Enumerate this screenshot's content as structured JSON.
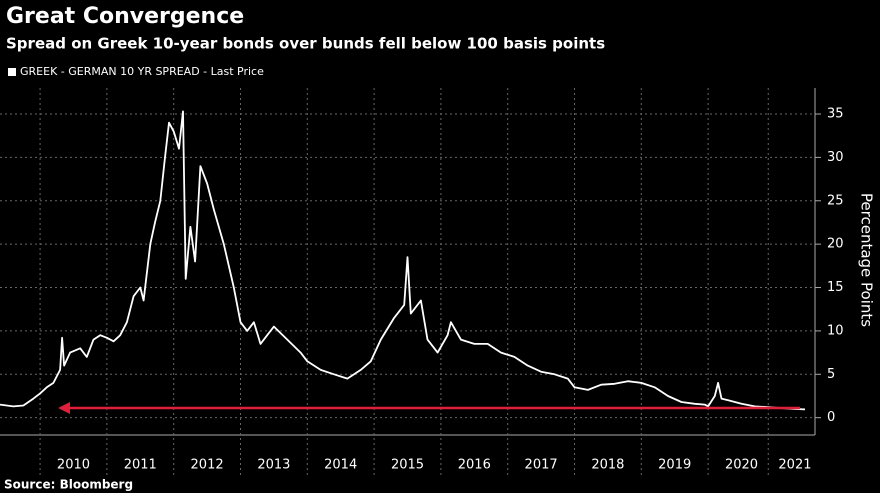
{
  "chart_data": {
    "type": "line",
    "title": "Great Convergence",
    "subtitle": "Spread on Greek 10-year bonds over bunds fell below 100 basis points",
    "source": "Source: Bloomberg",
    "y_label": "Percentage Points",
    "x": [
      2009.4,
      2009.6,
      2009.75,
      2009.9,
      2010.0,
      2010.1,
      2010.2,
      2010.3,
      2010.33,
      2010.36,
      2010.45,
      2010.6,
      2010.7,
      2010.8,
      2010.9,
      2011.0,
      2011.1,
      2011.2,
      2011.3,
      2011.4,
      2011.5,
      2011.55,
      2011.65,
      2011.72,
      2011.8,
      2011.87,
      2011.93,
      2012.0,
      2012.08,
      2012.14,
      2012.18,
      2012.25,
      2012.32,
      2012.4,
      2012.5,
      2012.6,
      2012.75,
      2012.9,
      2013.0,
      2013.1,
      2013.2,
      2013.3,
      2013.4,
      2013.5,
      2013.7,
      2013.9,
      2014.0,
      2014.2,
      2014.4,
      2014.6,
      2014.8,
      2014.95,
      2015.1,
      2015.3,
      2015.45,
      2015.5,
      2015.55,
      2015.7,
      2015.8,
      2015.95,
      2016.1,
      2016.15,
      2016.3,
      2016.5,
      2016.7,
      2016.9,
      2017.1,
      2017.3,
      2017.5,
      2017.7,
      2017.9,
      2018.0,
      2018.2,
      2018.4,
      2018.6,
      2018.8,
      2019.0,
      2019.2,
      2019.4,
      2019.6,
      2019.8,
      2019.95,
      2020.0,
      2020.1,
      2020.15,
      2020.2,
      2020.3,
      2020.5,
      2020.7,
      2020.9,
      2021.1,
      2021.3,
      2021.45
    ],
    "series": [
      {
        "name": "GREEK - GERMAN 10 YR SPREAD - Last Price",
        "color": "#ffffff",
        "values": [
          1.5,
          1.3,
          1.4,
          2.2,
          2.8,
          3.5,
          4.0,
          5.5,
          9.2,
          6.0,
          7.5,
          8.0,
          7.0,
          9.0,
          9.5,
          9.2,
          8.8,
          9.5,
          11.0,
          14.0,
          15.0,
          13.5,
          20.0,
          22.5,
          25.0,
          30.0,
          34.0,
          33.0,
          31.0,
          35.3,
          16.0,
          22.0,
          18.0,
          29.0,
          27.0,
          24.0,
          20.0,
          15.0,
          11.0,
          10.0,
          11.0,
          8.5,
          9.5,
          10.5,
          9.0,
          7.5,
          6.5,
          5.5,
          5.0,
          4.5,
          5.5,
          6.5,
          9.0,
          11.5,
          13.0,
          18.5,
          12.0,
          13.5,
          9.0,
          7.5,
          9.5,
          11.0,
          9.0,
          8.5,
          8.5,
          7.5,
          7.0,
          6.0,
          5.3,
          5.0,
          4.5,
          3.5,
          3.2,
          3.8,
          3.9,
          4.2,
          4.0,
          3.5,
          2.5,
          1.8,
          1.6,
          1.5,
          1.3,
          2.5,
          4.0,
          2.2,
          2.0,
          1.6,
          1.3,
          1.2,
          1.1,
          1.0,
          0.95
        ]
      }
    ],
    "xlim": [
      2009.4,
      2021.6
    ],
    "xticks": [
      {
        "value": 2010.5,
        "label": "2010"
      },
      {
        "value": 2011.5,
        "label": "2011"
      },
      {
        "value": 2012.5,
        "label": "2012"
      },
      {
        "value": 2013.5,
        "label": "2013"
      },
      {
        "value": 2014.5,
        "label": "2014"
      },
      {
        "value": 2015.5,
        "label": "2015"
      },
      {
        "value": 2016.5,
        "label": "2016"
      },
      {
        "value": 2017.5,
        "label": "2017"
      },
      {
        "value": 2018.5,
        "label": "2018"
      },
      {
        "value": 2019.5,
        "label": "2019"
      },
      {
        "value": 2020.5,
        "label": "2020"
      },
      {
        "value": 2021.3,
        "label": "2021"
      }
    ],
    "ylim": [
      -2,
      38
    ],
    "yticks": [
      0,
      5,
      10,
      15,
      20,
      25,
      30,
      35
    ],
    "grid": true
  }
}
